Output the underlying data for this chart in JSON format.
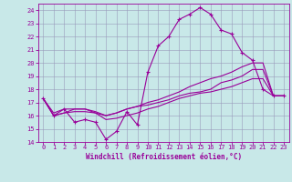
{
  "xlabel": "Windchill (Refroidissement éolien,°C)",
  "xlim": [
    -0.5,
    23.5
  ],
  "ylim": [
    14,
    24.5
  ],
  "yticks": [
    14,
    15,
    16,
    17,
    18,
    19,
    20,
    21,
    22,
    23,
    24
  ],
  "xticks": [
    0,
    1,
    2,
    3,
    4,
    5,
    6,
    7,
    8,
    9,
    10,
    11,
    12,
    13,
    14,
    15,
    16,
    17,
    18,
    19,
    20,
    21,
    22,
    23
  ],
  "background_color": "#c8e8e8",
  "grid_color": "#9999bb",
  "line_color": "#990099",
  "series": [
    [
      17.3,
      16.0,
      16.5,
      15.5,
      15.7,
      15.5,
      14.2,
      14.8,
      16.3,
      15.3,
      19.3,
      21.3,
      22.0,
      23.3,
      23.7,
      24.2,
      23.7,
      22.5,
      22.2,
      20.8,
      20.2,
      18.0,
      17.5,
      17.5
    ],
    [
      17.3,
      16.2,
      16.5,
      16.5,
      16.5,
      16.3,
      16.0,
      16.2,
      16.5,
      16.7,
      17.0,
      17.2,
      17.5,
      17.8,
      18.2,
      18.5,
      18.8,
      19.0,
      19.3,
      19.7,
      20.0,
      20.0,
      17.5,
      17.5
    ],
    [
      17.3,
      16.0,
      16.2,
      16.3,
      16.3,
      16.2,
      16.0,
      16.2,
      16.5,
      16.7,
      16.8,
      17.0,
      17.2,
      17.5,
      17.7,
      17.8,
      18.0,
      18.5,
      18.7,
      19.0,
      19.5,
      19.5,
      17.5,
      17.5
    ],
    [
      17.3,
      16.0,
      16.2,
      16.5,
      16.5,
      16.2,
      15.7,
      15.8,
      16.0,
      16.2,
      16.5,
      16.7,
      17.0,
      17.3,
      17.5,
      17.7,
      17.8,
      18.0,
      18.2,
      18.5,
      18.8,
      18.8,
      17.5,
      17.5
    ]
  ]
}
